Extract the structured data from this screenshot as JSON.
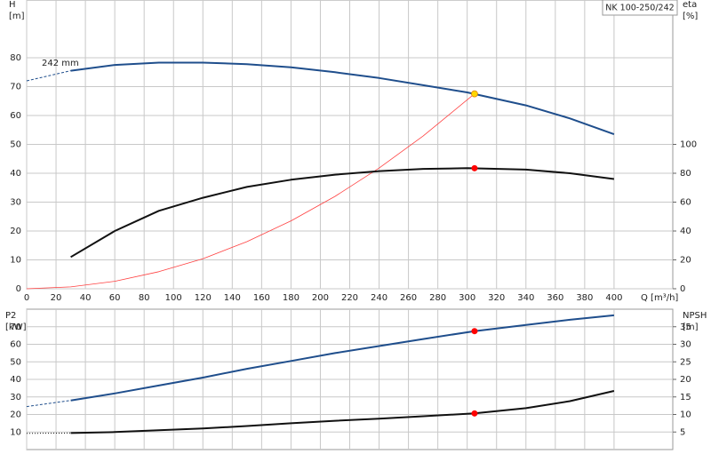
{
  "chart_data": [
    {
      "type": "line",
      "title": "NK 100-250/242",
      "ylabel": "H",
      "yunit": "[m]",
      "y2label": "eta",
      "y2unit": "[%]",
      "xlabel": "Q [m³/h]",
      "annotation": "242 mm",
      "xlim": [
        0,
        440
      ],
      "xticks": [
        0,
        20,
        40,
        60,
        80,
        100,
        120,
        140,
        160,
        180,
        200,
        220,
        240,
        260,
        280,
        300,
        320,
        340,
        360,
        380,
        400
      ],
      "xtick_labels": true,
      "ylim": [
        0,
        100
      ],
      "yticks": [
        0,
        10,
        20,
        30,
        40,
        50,
        60,
        70,
        80
      ],
      "y2lim": [
        0,
        200
      ],
      "y2ticks": [
        0,
        20,
        40,
        60,
        80,
        100
      ],
      "grid": true,
      "series": [
        {
          "color": "#1f4e8c",
          "style": "dashed",
          "x": [
            0,
            30
          ],
          "values": [
            72,
            75.5
          ]
        },
        {
          "color": "#1f4e8c",
          "style": "solid",
          "x": [
            30,
            60,
            90,
            120,
            150,
            180,
            210,
            240,
            270,
            300,
            340,
            370,
            400
          ],
          "values": [
            75.5,
            77.5,
            78.3,
            78.3,
            77.8,
            76.7,
            75,
            73,
            70.5,
            68,
            63.5,
            59,
            53.5
          ]
        },
        {
          "color": "#ff4040",
          "style": "thin",
          "x": [
            0,
            30,
            60,
            90,
            120,
            150,
            180,
            210,
            240,
            270,
            305
          ],
          "values": [
            0,
            0.65,
            2.6,
            5.9,
            10.4,
            16.3,
            23.5,
            32,
            41.8,
            52.9,
            67.5
          ]
        },
        {
          "color": "#111111",
          "style": "solid",
          "axis": "y2",
          "x": [
            30,
            60,
            90,
            120,
            150,
            180,
            210,
            240,
            270,
            300,
            340,
            370,
            400
          ],
          "values": [
            22,
            40,
            54,
            63,
            70.5,
            75.5,
            79,
            81.5,
            83,
            83.5,
            82.5,
            80,
            76
          ]
        },
        {
          "color": "#ffd700",
          "style": "marker",
          "x": [
            305
          ],
          "values": [
            67.5
          ]
        },
        {
          "color": "#ff0000",
          "style": "marker",
          "axis": "y2",
          "x": [
            305
          ],
          "values": [
            83.5
          ]
        }
      ]
    },
    {
      "type": "line",
      "ylabel": "P2",
      "yunit": "[kW]",
      "y2label": "NPSH",
      "y2unit": "[m]",
      "xlim": [
        0,
        440
      ],
      "xticks": [
        0,
        20,
        40,
        60,
        80,
        100,
        120,
        140,
        160,
        180,
        200,
        220,
        240,
        260,
        280,
        300,
        320,
        340,
        360,
        380,
        400
      ],
      "xtick_labels": false,
      "ylim": [
        0,
        80
      ],
      "yticks": [
        10,
        20,
        30,
        40,
        50,
        60,
        70
      ],
      "y2lim": [
        0,
        40
      ],
      "y2ticks": [
        5,
        10,
        15,
        20,
        25,
        30,
        35
      ],
      "grid": true,
      "series": [
        {
          "color": "#1f4e8c",
          "style": "dashed",
          "x": [
            0,
            30
          ],
          "values": [
            24.5,
            28
          ]
        },
        {
          "color": "#1f4e8c",
          "style": "solid",
          "x": [
            30,
            60,
            90,
            120,
            150,
            180,
            210,
            240,
            270,
            305,
            340,
            370,
            400
          ],
          "values": [
            28,
            32,
            36.5,
            41,
            46,
            50.5,
            55,
            59,
            63,
            67.5,
            71,
            74,
            76.5
          ]
        },
        {
          "color": "#111111",
          "style": "dotted",
          "axis": "y2",
          "x": [
            0,
            30
          ],
          "values": [
            4.6,
            4.7
          ]
        },
        {
          "color": "#111111",
          "style": "solid",
          "axis": "y2",
          "x": [
            30,
            60,
            90,
            120,
            150,
            180,
            210,
            240,
            270,
            305,
            340,
            370,
            400
          ],
          "values": [
            4.7,
            5,
            5.5,
            6,
            6.7,
            7.5,
            8.2,
            8.8,
            9.5,
            10.3,
            11.8,
            13.8,
            16.7
          ]
        },
        {
          "color": "#ff0000",
          "style": "marker",
          "x": [
            305
          ],
          "values": [
            67.5
          ]
        },
        {
          "color": "#ff0000",
          "style": "marker",
          "axis": "y2",
          "x": [
            305
          ],
          "values": [
            10.3
          ]
        }
      ]
    }
  ]
}
